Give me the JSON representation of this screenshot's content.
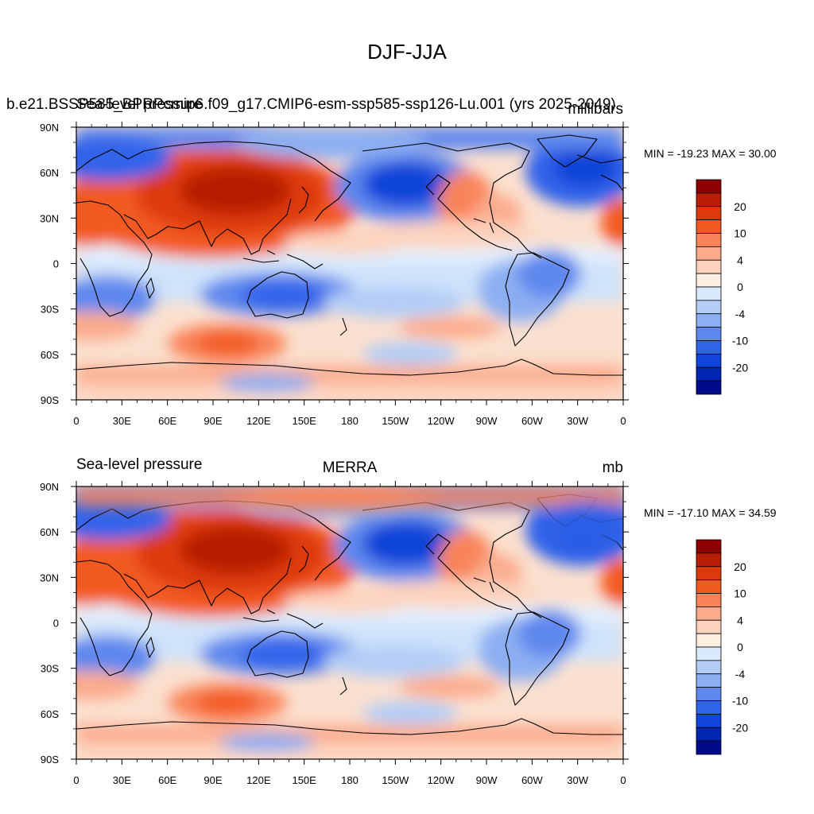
{
  "figure": {
    "title": "DJF-JJA"
  },
  "panels": [
    {
      "title_left_1": "b.e21.BSSP585_BPRPcmip6.f09_g17.CMIP6-esm-ssp585-ssp126-Lu.001 (yrs 2025-2049)",
      "title_left_2": "Sea-level pressure",
      "title_center": "",
      "title_right": "millibars",
      "min_max": "MIN = -19.23 MAX =  30.00"
    },
    {
      "title_left_1": "",
      "title_left_2": "Sea-level pressure",
      "title_center": "MERRA",
      "title_right": "mb",
      "min_max": "MIN = -17.10 MAX =  34.59"
    }
  ],
  "axes": {
    "x_ticks": [
      "0",
      "30E",
      "60E",
      "90E",
      "120E",
      "150E",
      "180",
      "150W",
      "120W",
      "90W",
      "60W",
      "30W",
      "0"
    ],
    "y_ticks": [
      "90N",
      "60N",
      "30N",
      "0",
      "30S",
      "60S",
      "90S"
    ]
  },
  "colorbar": {
    "labels": [
      "20",
      "10",
      "4",
      "0",
      "-4",
      "-10",
      "-20"
    ],
    "colors": [
      "#8b0000",
      "#b81d05",
      "#dd3a0c",
      "#f35a20",
      "#f9845a",
      "#fbab8c",
      "#fdd3bd",
      "#fdf0e3",
      "#d9eafc",
      "#b3cdf7",
      "#8caff2",
      "#5e88ee",
      "#3064ea",
      "#1145d8",
      "#0025b0",
      "#000a8a"
    ]
  },
  "chart_data": [
    {
      "type": "heatmap",
      "title": "Sea-level pressure",
      "units": "millibars",
      "min": -19.23,
      "max": 30.0
    },
    {
      "type": "heatmap",
      "title": "MERRA",
      "units": "mb",
      "min": -17.1,
      "max": 34.59
    }
  ]
}
